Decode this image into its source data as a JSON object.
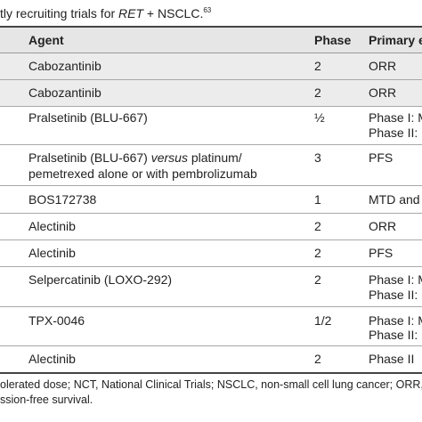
{
  "caption": {
    "prefix": "tly recruiting trials for ",
    "gene": "RET",
    "suffix": " + NSCLC.",
    "ref": "63"
  },
  "headers": {
    "agent": "Agent",
    "phase": "Phase",
    "endpoint": "Primary e"
  },
  "rows": [
    {
      "agent": "Cabozantinib",
      "agent_tail": "",
      "agent_line2": "",
      "phase": "2",
      "endpoint": "ORR",
      "endpoint_line2": ""
    },
    {
      "agent": "Cabozantinib",
      "agent_tail": "",
      "agent_line2": "",
      "phase": "2",
      "endpoint": "ORR",
      "endpoint_line2": ""
    },
    {
      "agent": "Pralsetinib (BLU-667)",
      "agent_tail": "",
      "agent_line2": "",
      "phase": "½",
      "endpoint": "Phase I: M",
      "endpoint_line2": "Phase II: "
    },
    {
      "agent": "Pralsetinib (BLU-667) ",
      "agent_italic": "versus",
      "agent_tail": " platinum/",
      "agent_line2": "pemetrexed alone or with pembrolizumab",
      "phase": "3",
      "endpoint": "PFS",
      "endpoint_line2": ""
    },
    {
      "agent": "BOS172738",
      "agent_tail": "",
      "agent_line2": "",
      "phase": "1",
      "endpoint": "MTD and",
      "endpoint_line2": ""
    },
    {
      "agent": "Alectinib",
      "agent_tail": "",
      "agent_line2": "",
      "phase": "2",
      "endpoint": "ORR",
      "endpoint_line2": ""
    },
    {
      "agent": "Alectinib",
      "agent_tail": "",
      "agent_line2": "",
      "phase": "2",
      "endpoint": "PFS",
      "endpoint_line2": ""
    },
    {
      "agent": "Selpercatinib (LOXO-292)",
      "agent_tail": "",
      "agent_line2": "",
      "phase": "2",
      "endpoint": "Phase I: M",
      "endpoint_line2": "Phase II: "
    },
    {
      "agent": "TPX-0046",
      "agent_tail": "",
      "agent_line2": "",
      "phase": "1/2",
      "endpoint": "Phase I: M",
      "endpoint_line2": "Phase II: "
    },
    {
      "agent": "Alectinib",
      "agent_tail": "",
      "agent_line2": "",
      "phase": "2",
      "endpoint": "Phase II",
      "endpoint_line2": ""
    }
  ],
  "footnote": {
    "line1": "olerated dose; NCT, National Clinical Trials; NSCLC, non-small cell lung cancer; ORR,",
    "line2": "ssion-free survival."
  }
}
